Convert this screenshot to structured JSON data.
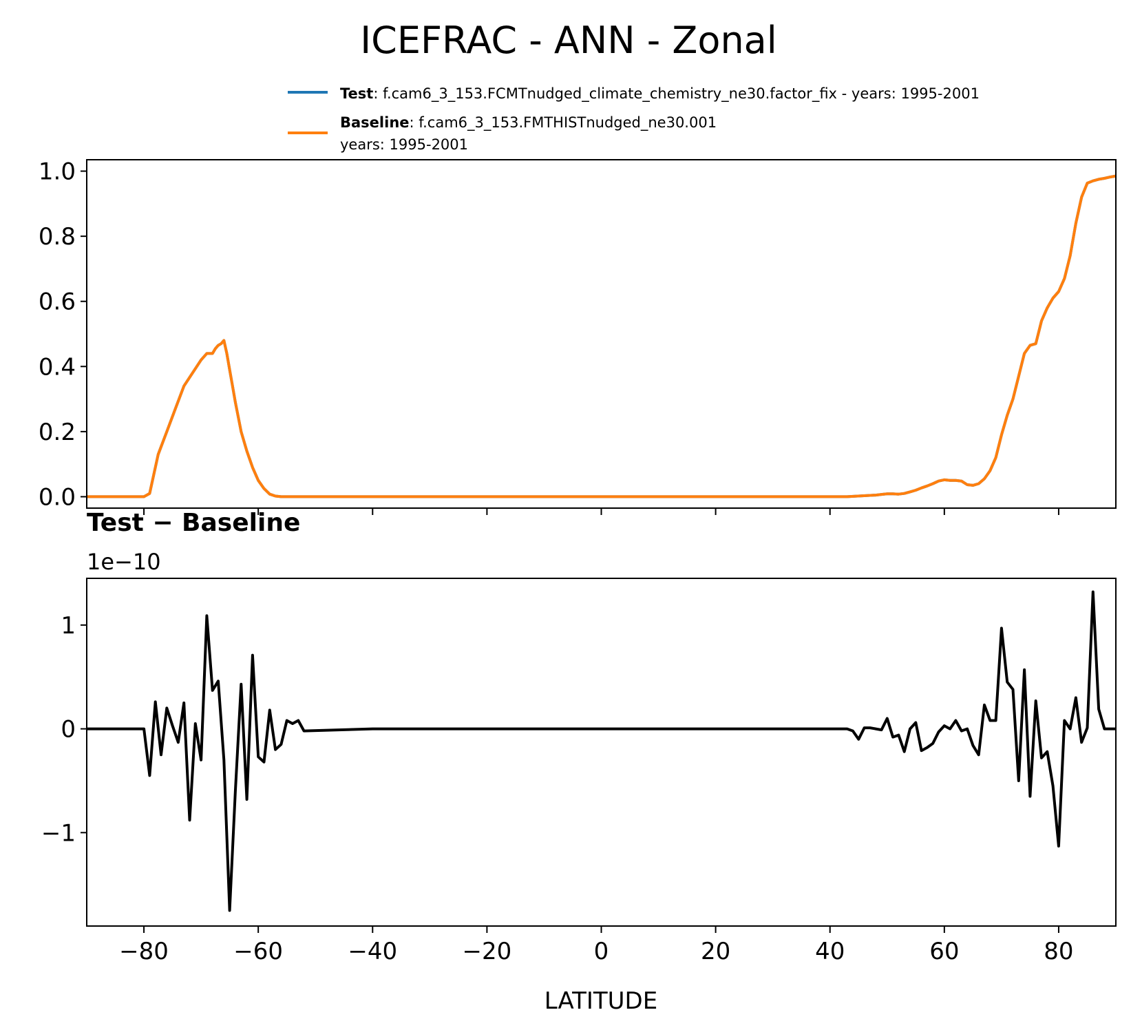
{
  "figure_title": "ICEFRAC - ANN - Zonal",
  "legend": {
    "test_name": "Test",
    "test_text": ": f.cam6_3_153.FCMTnudged_climate_chemistry_ne30.factor_fix - years: 1995-2001",
    "baseline_name": "Baseline",
    "baseline_text": ": f.cam6_3_153.FMTHISTnudged_ne30.001",
    "baseline_text2": "years: 1995-2001"
  },
  "colors": {
    "test": "#1f77b4",
    "baseline": "#ff7f0e",
    "diff": "#000000"
  },
  "chart_data": [
    {
      "type": "line",
      "panel": "top",
      "xlim": [
        -90,
        90
      ],
      "ylim": [
        -0.035,
        1.035
      ],
      "yticks": [
        0.0,
        0.2,
        0.4,
        0.6,
        0.8,
        1.0
      ],
      "ytick_labels": [
        "0.0",
        "0.2",
        "0.4",
        "0.6",
        "0.8",
        "1.0"
      ],
      "x": [
        -90,
        -80,
        -79,
        -77.5,
        -76,
        -74.5,
        -73,
        -71.5,
        -70,
        -69.5,
        -69,
        -68.5,
        -68,
        -67.5,
        -67,
        -66.5,
        -66,
        -65.5,
        -65,
        -64.5,
        -64,
        -63,
        -62,
        -61,
        -60,
        -59,
        -58,
        -57,
        -56,
        -55,
        -54,
        -53,
        -52,
        -40,
        -20,
        0,
        20,
        40,
        43,
        48,
        49,
        50,
        51,
        52,
        53,
        54,
        55,
        56,
        57,
        58,
        59,
        60,
        61,
        62,
        63,
        64,
        65,
        66,
        67,
        68,
        69,
        70,
        71,
        72,
        73,
        74,
        75,
        76,
        77,
        78,
        79,
        80,
        81,
        82,
        83,
        84,
        85,
        86,
        87,
        88,
        89,
        90
      ],
      "series": [
        {
          "name": "Test",
          "values": [
            0,
            0,
            0.01,
            0.13,
            0.2,
            0.27,
            0.34,
            0.38,
            0.42,
            0.43,
            0.44,
            0.44,
            0.44,
            0.455,
            0.465,
            0.47,
            0.48,
            0.44,
            0.39,
            0.34,
            0.29,
            0.2,
            0.14,
            0.09,
            0.05,
            0.025,
            0.008,
            0.002,
            0,
            0,
            0,
            0,
            0,
            0,
            0,
            0,
            0,
            0,
            0,
            0.005,
            0.007,
            0.009,
            0.009,
            0.008,
            0.01,
            0.015,
            0.02,
            0.027,
            0.033,
            0.04,
            0.048,
            0.052,
            0.05,
            0.05,
            0.048,
            0.037,
            0.035,
            0.04,
            0.055,
            0.08,
            0.12,
            0.19,
            0.25,
            0.3,
            0.37,
            0.44,
            0.465,
            0.47,
            0.54,
            0.58,
            0.61,
            0.63,
            0.67,
            0.74,
            0.84,
            0.92,
            0.963,
            0.97,
            0.975,
            0.978,
            0.982,
            0.985
          ]
        },
        {
          "name": "Baseline",
          "values": [
            0,
            0,
            0.01,
            0.13,
            0.2,
            0.27,
            0.34,
            0.38,
            0.42,
            0.43,
            0.44,
            0.44,
            0.44,
            0.455,
            0.465,
            0.47,
            0.48,
            0.44,
            0.39,
            0.34,
            0.29,
            0.2,
            0.14,
            0.09,
            0.05,
            0.025,
            0.008,
            0.002,
            0,
            0,
            0,
            0,
            0,
            0,
            0,
            0,
            0,
            0,
            0,
            0.005,
            0.007,
            0.009,
            0.009,
            0.008,
            0.01,
            0.015,
            0.02,
            0.027,
            0.033,
            0.04,
            0.048,
            0.052,
            0.05,
            0.05,
            0.048,
            0.037,
            0.035,
            0.04,
            0.055,
            0.08,
            0.12,
            0.19,
            0.25,
            0.3,
            0.37,
            0.44,
            0.465,
            0.47,
            0.54,
            0.58,
            0.61,
            0.63,
            0.67,
            0.74,
            0.84,
            0.92,
            0.963,
            0.97,
            0.975,
            0.978,
            0.982,
            0.985
          ]
        }
      ]
    },
    {
      "type": "line",
      "panel": "bottom",
      "title": "Test − Baseline",
      "offset_text": "1e−10",
      "xlabel": "LATITUDE",
      "xlim": [
        -90,
        90
      ],
      "ylim": [
        -1.9,
        1.45
      ],
      "xticks": [
        -80,
        -60,
        -40,
        -20,
        0,
        20,
        40,
        60,
        80
      ],
      "xtick_labels": [
        "−80",
        "−60",
        "−40",
        "−20",
        "0",
        "20",
        "40",
        "60",
        "80"
      ],
      "yticks": [
        -1,
        0,
        1
      ],
      "ytick_labels": [
        "−1",
        "0",
        "1"
      ],
      "x": [
        -90,
        -80,
        -79,
        -78,
        -77,
        -76,
        -75,
        -74,
        -73,
        -72,
        -71,
        -70,
        -69,
        -68,
        -67,
        -66,
        -65,
        -64,
        -63,
        -62,
        -61,
        -60,
        -59,
        -58,
        -57,
        -56,
        -55,
        -54,
        -53,
        -52,
        -40,
        -20,
        0,
        20,
        40,
        43,
        44,
        45,
        46,
        47,
        48,
        49,
        50,
        51,
        52,
        53,
        54,
        55,
        56,
        57,
        58,
        59,
        60,
        61,
        62,
        63,
        64,
        65,
        66,
        67,
        68,
        69,
        70,
        71,
        72,
        73,
        74,
        75,
        76,
        77,
        78,
        79,
        80,
        81,
        82,
        83,
        84,
        85,
        86,
        87,
        88,
        89,
        90
      ],
      "series": [
        {
          "name": "Test − Baseline",
          "values": [
            0,
            0,
            -0.45,
            0.26,
            -0.25,
            0.2,
            0.03,
            -0.13,
            0.25,
            -0.88,
            0.05,
            -0.3,
            1.09,
            0.37,
            0.46,
            -0.3,
            -1.75,
            -0.6,
            0.43,
            -0.68,
            0.71,
            -0.27,
            -0.32,
            0.18,
            -0.2,
            -0.15,
            0.08,
            0.05,
            0.08,
            -0.02,
            0,
            0,
            0,
            0,
            0,
            0,
            -0.02,
            -0.1,
            0.01,
            0.01,
            0,
            -0.01,
            0.1,
            -0.08,
            -0.06,
            -0.22,
            0,
            0.06,
            -0.21,
            -0.18,
            -0.14,
            -0.03,
            0.03,
            0,
            0.08,
            -0.02,
            0,
            -0.16,
            -0.25,
            0.23,
            0.08,
            0.08,
            0.97,
            0.45,
            0.38,
            -0.5,
            0.57,
            -0.65,
            0.27,
            -0.28,
            -0.22,
            -0.55,
            -1.13,
            0.08,
            0,
            0.3,
            -0.13,
            0.01,
            1.32,
            0.19,
            0,
            0,
            0
          ]
        }
      ]
    }
  ]
}
